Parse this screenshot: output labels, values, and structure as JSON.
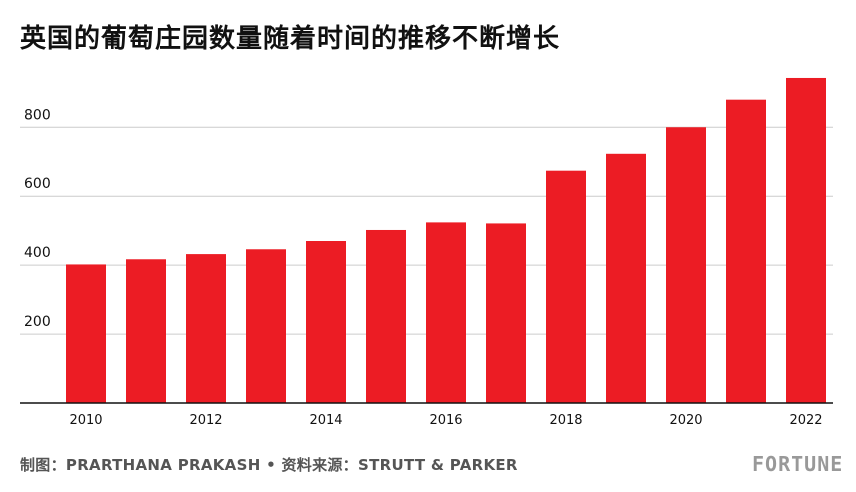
{
  "title": "英国的葡萄庄园数量随着时间的推移不断增长",
  "footer": {
    "credit": "制图：PRARTHANA PRAKASH • 资料来源：STRUTT & PARKER",
    "logo": "FORTUNE"
  },
  "colors": {
    "bar": "#ec1c24",
    "grid": "#cccccc",
    "axis": "#111111",
    "text": "#111111"
  },
  "chart_data": {
    "type": "bar",
    "title": "英国的葡萄庄园数量随着时间的推移不断增长",
    "xlabel": "",
    "ylabel": "",
    "ylim": [
      0,
      940
    ],
    "yticks": [
      200,
      400,
      600,
      800
    ],
    "ytick_labels": [
      "200",
      "400",
      "600",
      "800"
    ],
    "categories": [
      "2010",
      "2011",
      "2012",
      "2013",
      "2014",
      "2015",
      "2016",
      "2017",
      "2018",
      "2019",
      "2020",
      "2021",
      "2022"
    ],
    "xtick_labels": [
      "2010",
      "",
      "2012",
      "",
      "2014",
      "",
      "2016",
      "",
      "2018",
      "",
      "2020",
      "",
      "2022"
    ],
    "values": [
      402,
      417,
      432,
      446,
      470,
      502,
      524,
      521,
      674,
      723,
      800,
      880,
      943
    ],
    "grid": true,
    "legend": "none"
  }
}
